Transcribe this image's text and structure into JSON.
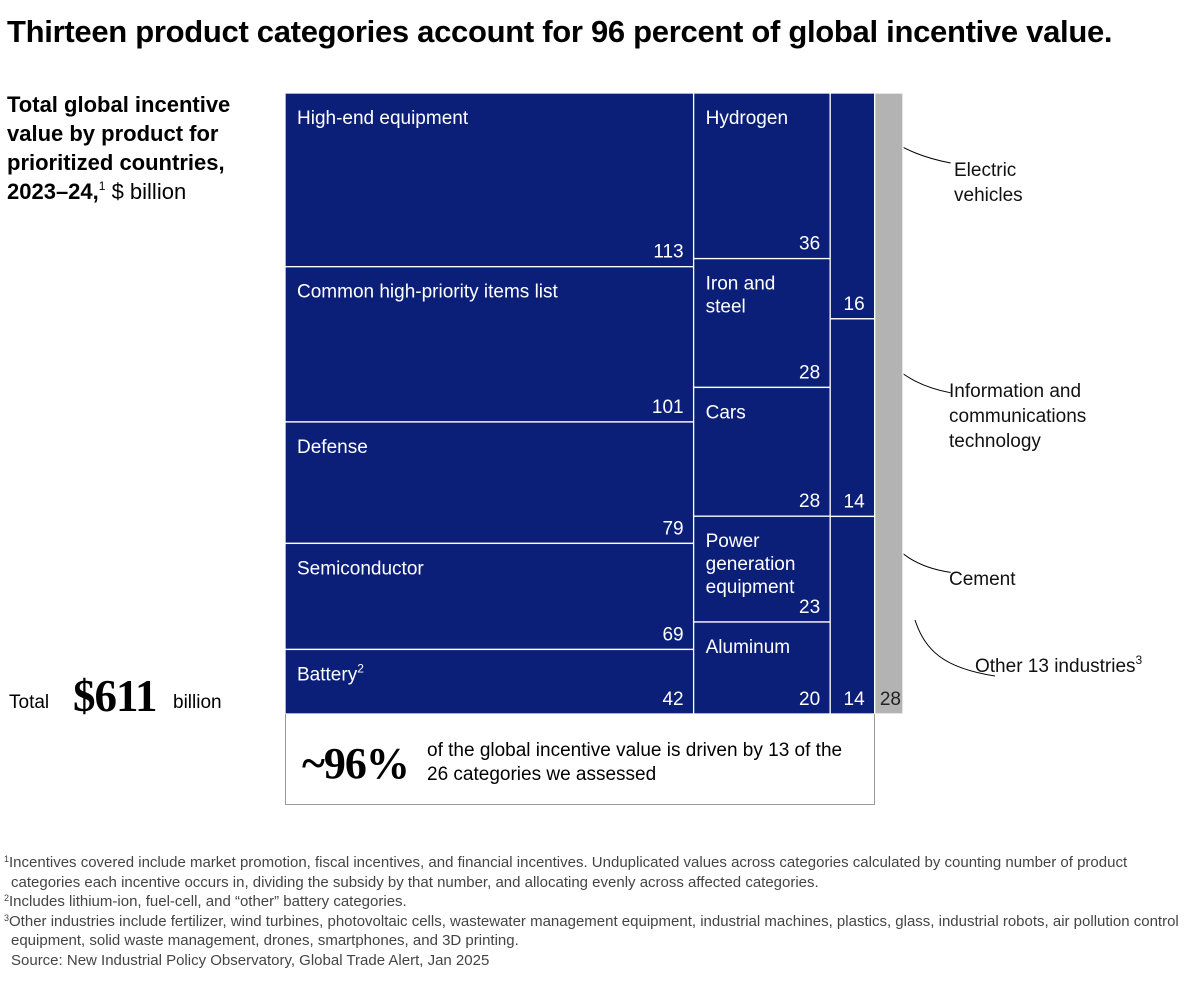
{
  "title": "Thirteen product categories account for 96 percent of global incentive value.",
  "subtitle": {
    "bold": "Total global incentive value by product for prioritized countries, 2023–24,",
    "sup": "1",
    "unit": "$ billion"
  },
  "total": {
    "label": "Total",
    "value": "$611",
    "unit": "billion"
  },
  "chart_data": {
    "type": "treemap",
    "title": "Total global incentive value by product for prioritized countries, 2023–24",
    "unit": "$ billion",
    "total": 611,
    "columns": [
      [
        {
          "name": "High-end equipment",
          "sup": "",
          "value": 113
        },
        {
          "name": "Common high-priority items list",
          "sup": "",
          "value": 101
        },
        {
          "name": "Defense",
          "sup": "",
          "value": 79
        },
        {
          "name": "Semiconductor",
          "sup": "",
          "value": 69
        },
        {
          "name": "Battery",
          "sup": "2",
          "value": 42
        }
      ],
      [
        {
          "name": "Hydrogen",
          "sup": "",
          "value": 36
        },
        {
          "name": "Iron and steel",
          "sup": "",
          "value": 28
        },
        {
          "name": "Cars",
          "sup": "",
          "value": 28
        },
        {
          "name": "Power generation equipment",
          "sup": "",
          "value": 23
        },
        {
          "name": "Aluminum",
          "sup": "",
          "value": 20
        }
      ],
      [
        {
          "name": "Electric vehicles",
          "sup": "",
          "value": 16
        },
        {
          "name": "Information and communications technology",
          "sup": "",
          "value": 14
        },
        {
          "name": "Cement",
          "sup": "",
          "value": 14
        }
      ],
      [
        {
          "name": "Other 13 industries",
          "sup": "3",
          "value": 28
        }
      ]
    ],
    "colors": {
      "main": "#0b1f78",
      "other": "#b3b3b3",
      "text_on_main": "#ffffff",
      "text_on_other": "#222222",
      "leader": "#000000"
    }
  },
  "callout": {
    "percent": "~96%",
    "text": "of the global incentive value is driven by 13 of the 26 categories we assessed"
  },
  "footnotes": [
    {
      "mark": "1",
      "text": "Incentives covered include market promotion, fiscal incentives, and financial incentives. Unduplicated values across categories calculated by counting number of product categories each incentive occurs in, dividing the subsidy by that number, and allocating evenly across affected categories."
    },
    {
      "mark": "2",
      "text": "Includes lithium-ion, fuel-cell, and “other” battery categories."
    },
    {
      "mark": "3",
      "text": "Other industries include fertilizer, wind turbines, photovoltaic cells, wastewater management equipment, industrial machines, plastics, glass, industrial robots, air pollution control equipment, solid waste management, drones, smartphones, and 3D printing."
    }
  ],
  "source": "Source: New Industrial Policy Observatory, Global Trade Alert, Jan 2025"
}
